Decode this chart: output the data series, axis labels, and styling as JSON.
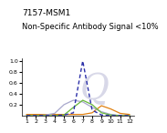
{
  "title": "7157-MSM1",
  "subtitle": "Non-Specific Antibody Signal <10%",
  "x": [
    1,
    2,
    3,
    4,
    5,
    6,
    7,
    8,
    9,
    10,
    11,
    12
  ],
  "dashed_blue": [
    0.0,
    0.0,
    0.0,
    0.0,
    0.01,
    0.05,
    1.0,
    0.1,
    0.01,
    0.0,
    0.0,
    0.0
  ],
  "solid_lavender": [
    0.0,
    0.0,
    0.01,
    0.04,
    0.2,
    0.28,
    0.25,
    0.15,
    0.07,
    0.02,
    0.0,
    0.0
  ],
  "solid_green": [
    0.0,
    0.0,
    0.0,
    0.0,
    0.01,
    0.15,
    0.28,
    0.2,
    0.05,
    0.01,
    0.0,
    0.0
  ],
  "solid_orange": [
    0.02,
    0.02,
    0.02,
    0.02,
    0.02,
    0.02,
    0.02,
    0.05,
    0.18,
    0.12,
    0.04,
    0.02
  ],
  "dashed_blue_color": "#2B2FA8",
  "solid_lavender_color": "#A8A8CC",
  "solid_green_color": "#68B83A",
  "solid_orange_color": "#E08010",
  "xlim": [
    0.5,
    12.5
  ],
  "ylim": [
    0,
    1.05
  ],
  "xticks": [
    1,
    2,
    3,
    4,
    5,
    6,
    7,
    8,
    9,
    10,
    11,
    12
  ],
  "yticks": [
    0.2,
    0.4,
    0.6,
    0.8,
    1.0
  ],
  "title_fontsize": 6.5,
  "tick_fontsize": 4.5,
  "background_color": "#ffffff",
  "watermark_color": "#d8d8e8"
}
